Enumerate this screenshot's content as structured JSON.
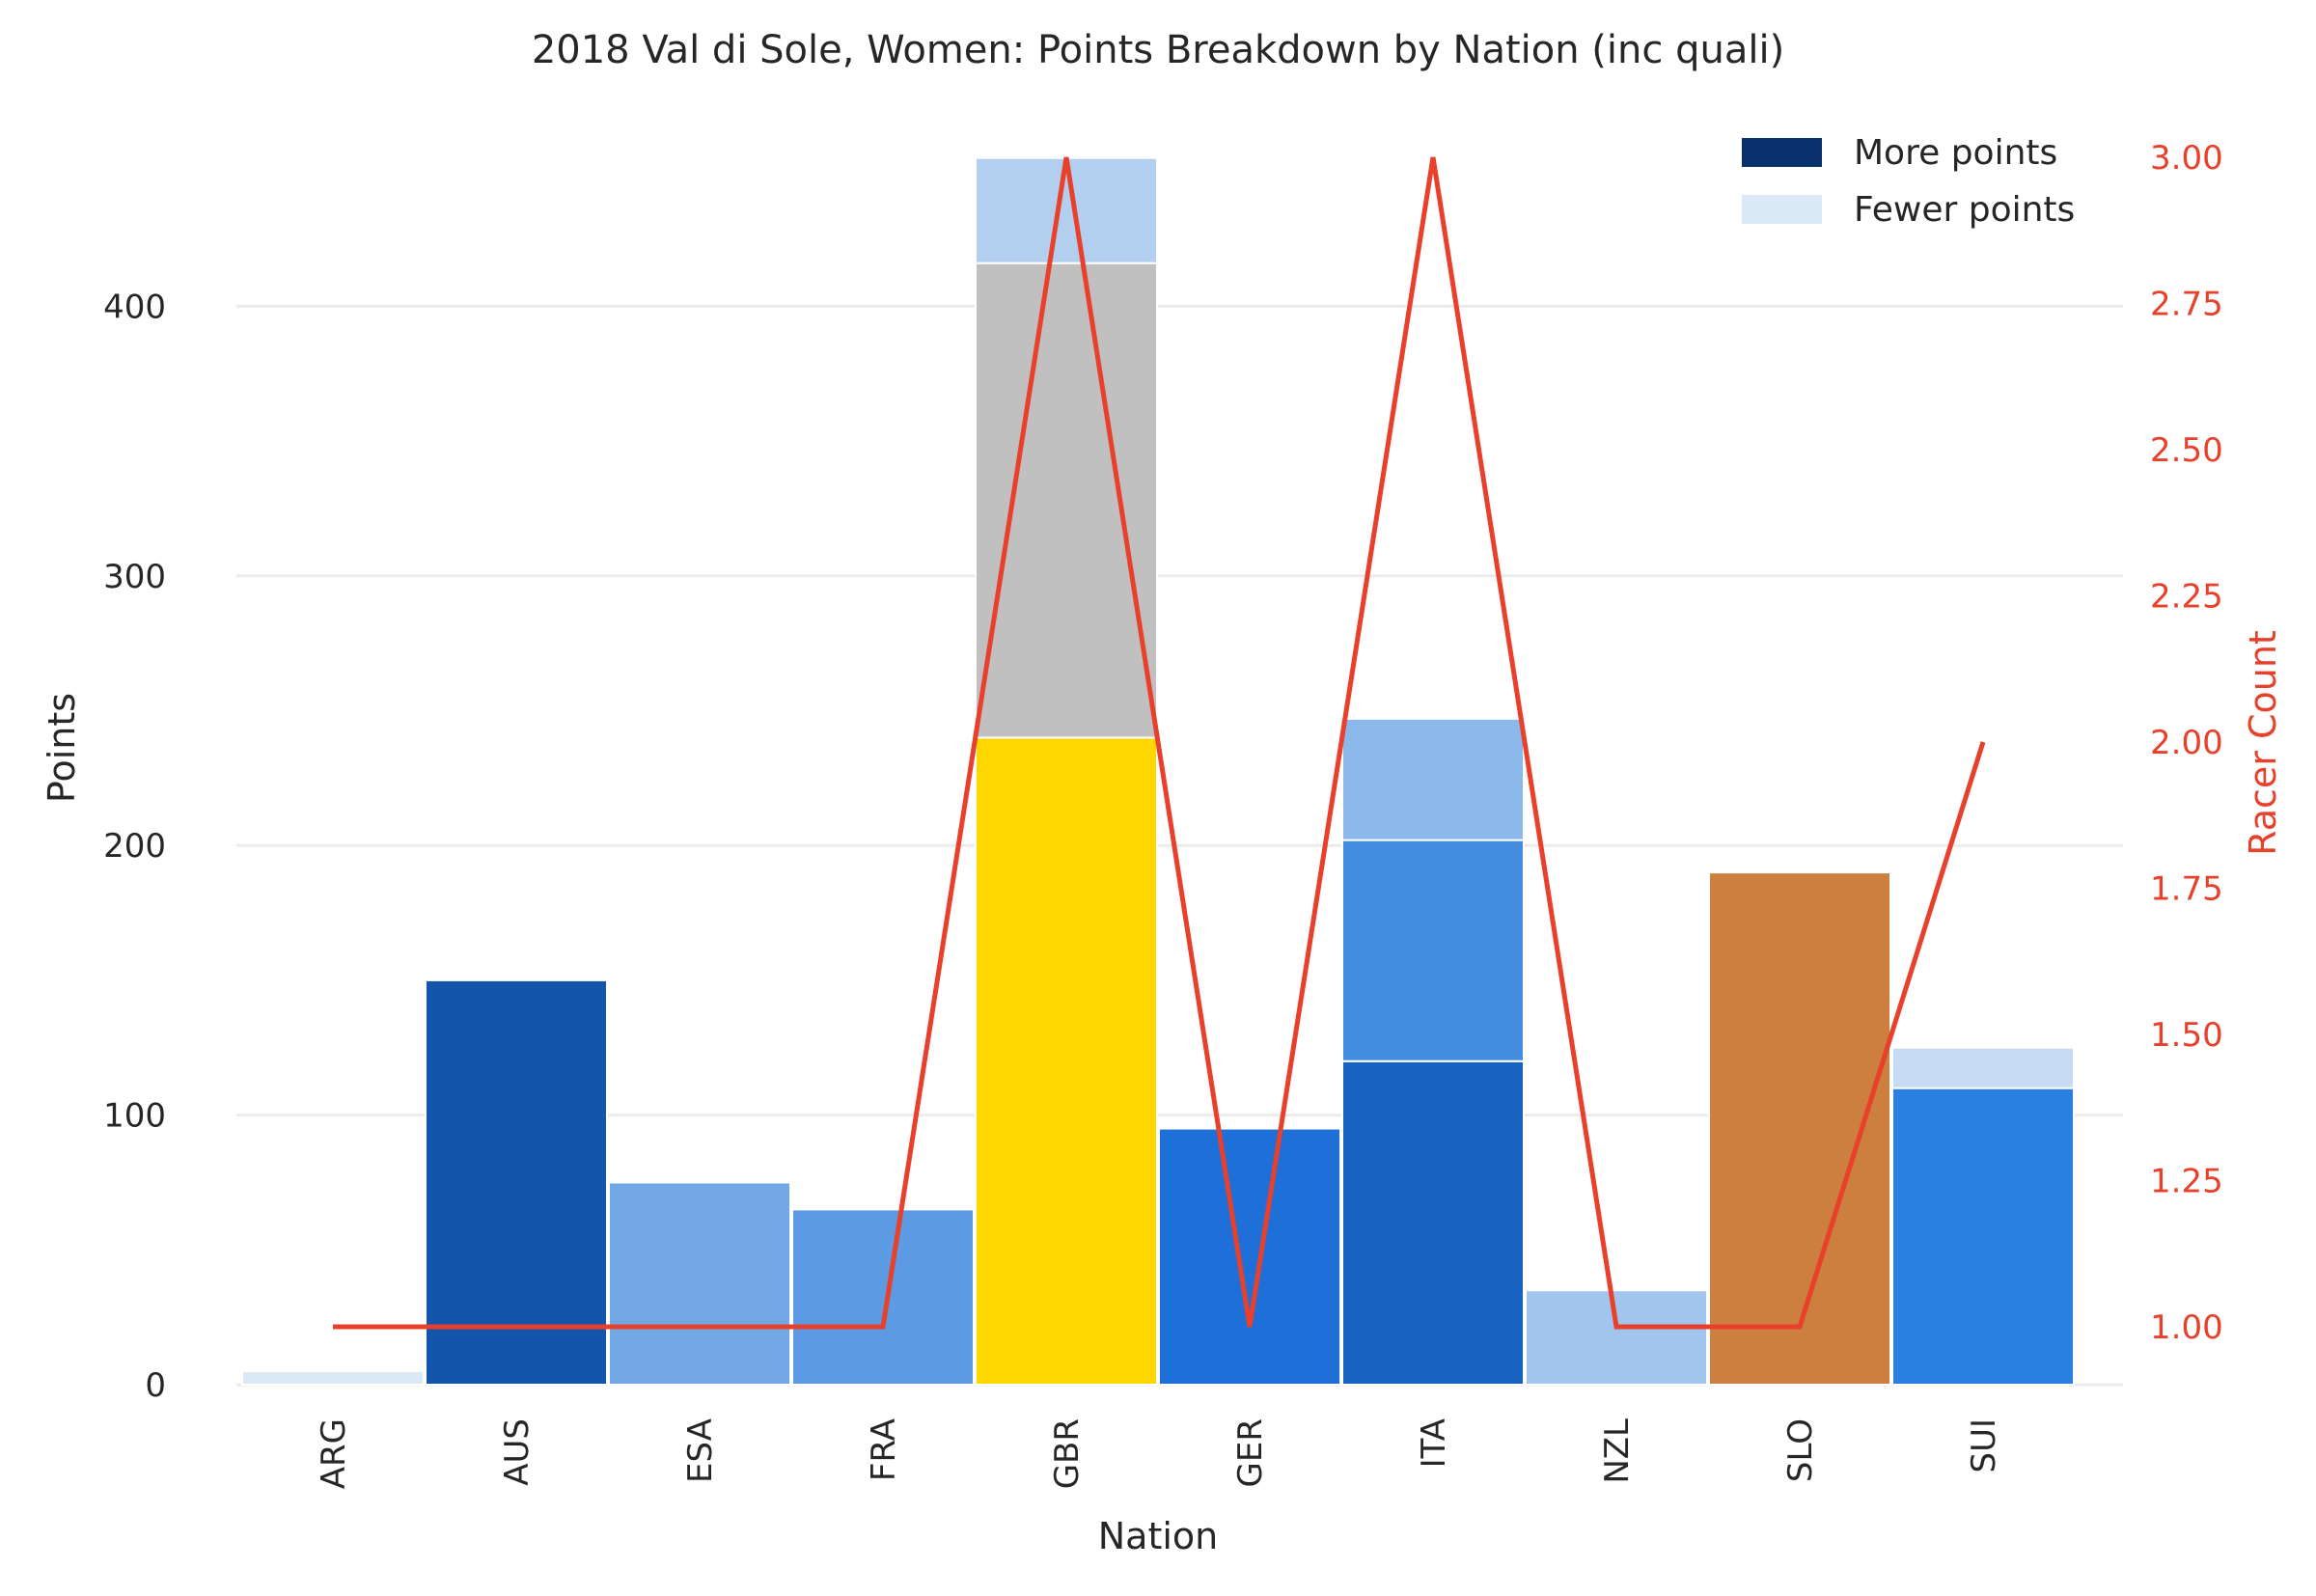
{
  "chart_data": {
    "type": "bar",
    "title": "2018 Val di Sole, Women: Points Breakdown by Nation (inc quali)",
    "xlabel": "Nation",
    "ylabel": "Points",
    "y2label": "Racer Count",
    "ylim": [
      0,
      460
    ],
    "y2lim": [
      0.9,
      3.0
    ],
    "yticks": [
      "0",
      "100",
      "200",
      "300",
      "400"
    ],
    "y2ticks": [
      "1.00",
      "1.25",
      "1.50",
      "1.75",
      "2.00",
      "2.25",
      "2.50",
      "2.75",
      "3.00"
    ],
    "grid": "horizontal",
    "legend_position": "top-right",
    "legend": [
      {
        "label": "More points",
        "color": "#08306b"
      },
      {
        "label": "Fewer points",
        "color": "#dbe9f6"
      }
    ],
    "categories": [
      "ARG",
      "AUS",
      "ESA",
      "FRA",
      "GBR",
      "GER",
      "ITA",
      "NZL",
      "SLO",
      "SUI"
    ],
    "stacks": [
      [
        {
          "value": 5,
          "color": "#dbe9f6"
        }
      ],
      [
        {
          "value": 150,
          "color": "#1355aa"
        }
      ],
      [
        {
          "value": 75,
          "color": "#72a8e6"
        }
      ],
      [
        {
          "value": 65,
          "color": "#5c9be4"
        }
      ],
      [
        {
          "value": 240,
          "color": "#ffd700"
        },
        {
          "value": 176,
          "color": "#c0c0c0"
        },
        {
          "value": 39,
          "color": "#b3cff0"
        }
      ],
      [
        {
          "value": 95,
          "color": "#1f6fd9"
        }
      ],
      [
        {
          "value": 120,
          "color": "#1862c2"
        },
        {
          "value": 82,
          "color": "#438ce0"
        },
        {
          "value": 45,
          "color": "#8ab8ea"
        }
      ],
      [
        {
          "value": 35,
          "color": "#a1c5ee"
        }
      ],
      [
        {
          "value": 190,
          "color": "#cd7f3f"
        }
      ],
      [
        {
          "value": 110,
          "color": "#2b7fe1"
        },
        {
          "value": 15,
          "color": "#c7dcf4"
        }
      ]
    ],
    "racer_count": {
      "color": "#e8402a",
      "values": [
        1,
        1,
        1,
        1,
        3,
        1,
        3,
        1,
        1,
        2
      ]
    }
  }
}
